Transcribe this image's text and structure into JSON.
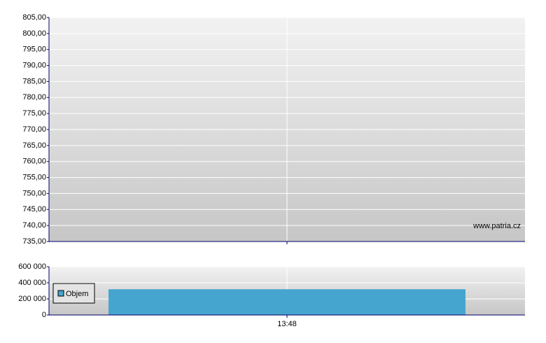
{
  "chart_data": [
    {
      "type": "line",
      "ylim": [
        735,
        805
      ],
      "yticks": [
        {
          "value": 735,
          "label": "735,00"
        },
        {
          "value": 740,
          "label": "740,00"
        },
        {
          "value": 745,
          "label": "745,00"
        },
        {
          "value": 750,
          "label": "750,00"
        },
        {
          "value": 755,
          "label": "755,00"
        },
        {
          "value": 760,
          "label": "760,00"
        },
        {
          "value": 765,
          "label": "765,00"
        },
        {
          "value": 770,
          "label": "770,00"
        },
        {
          "value": 775,
          "label": "775,00"
        },
        {
          "value": 780,
          "label": "780,00"
        },
        {
          "value": 785,
          "label": "785,00"
        },
        {
          "value": 790,
          "label": "790,00"
        },
        {
          "value": 795,
          "label": "795,00"
        },
        {
          "value": 800,
          "label": "800,00"
        },
        {
          "value": 805,
          "label": "805,00"
        }
      ],
      "grid": true,
      "annotation": "www.patria.cz"
    },
    {
      "type": "bar",
      "categories": [
        "13:48"
      ],
      "series": [
        {
          "name": "Objem",
          "color": "#46a5cf",
          "values": [
            320000
          ]
        }
      ],
      "ylim": [
        0,
        600000
      ],
      "yticks": [
        0,
        {
          "value": 200000,
          "label": "200 000"
        },
        {
          "value": 400000,
          "label": "400 000"
        },
        {
          "value": 600000,
          "label": "600 000"
        }
      ],
      "grid": true,
      "legend": "left"
    }
  ]
}
